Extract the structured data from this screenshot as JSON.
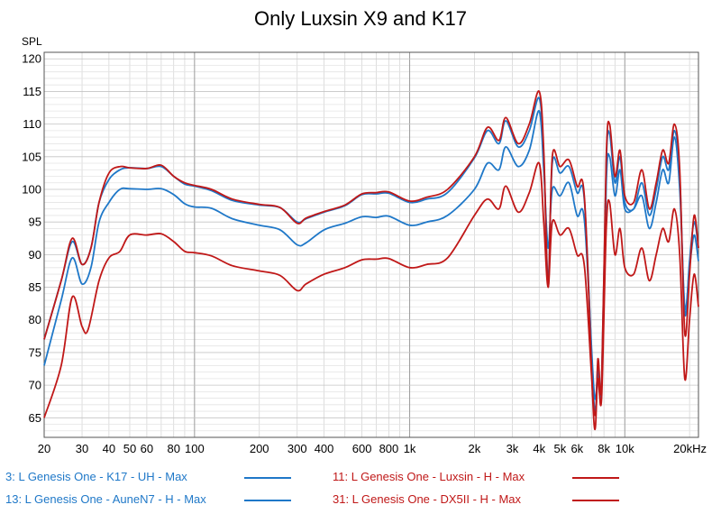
{
  "chart_data": {
    "type": "line",
    "title": "Only Luxsin X9 and K17",
    "ylabel": "SPL",
    "xlabel": "",
    "x_scale": "log",
    "xlim": [
      20,
      22000
    ],
    "ylim": [
      62,
      121
    ],
    "grid": true,
    "y_ticks": [
      65,
      70,
      75,
      80,
      85,
      90,
      95,
      100,
      105,
      110,
      115,
      120
    ],
    "x_ticks": [
      {
        "value": 20,
        "label": "20"
      },
      {
        "value": 30,
        "label": "30"
      },
      {
        "value": 40,
        "label": "40"
      },
      {
        "value": 50,
        "label": "50"
      },
      {
        "value": 60,
        "label": "60"
      },
      {
        "value": 80,
        "label": "80"
      },
      {
        "value": 100,
        "label": "100"
      },
      {
        "value": 200,
        "label": "200"
      },
      {
        "value": 300,
        "label": "300"
      },
      {
        "value": 400,
        "label": "400"
      },
      {
        "value": 600,
        "label": "600"
      },
      {
        "value": 800,
        "label": "800"
      },
      {
        "value": 1000,
        "label": "1k"
      },
      {
        "value": 2000,
        "label": "2k"
      },
      {
        "value": 3000,
        "label": "3k"
      },
      {
        "value": 4000,
        "label": "4k"
      },
      {
        "value": 5000,
        "label": "5k"
      },
      {
        "value": 6000,
        "label": "6k"
      },
      {
        "value": 8000,
        "label": "8k"
      },
      {
        "value": 10000,
        "label": "10k"
      },
      {
        "value": 20000,
        "label": "20kHz"
      }
    ],
    "series": [
      {
        "name": "3: L Genesis One - K17  - UH - Max",
        "color": "#1f78c8",
        "points": [
          [
            20,
            73
          ],
          [
            24,
            83
          ],
          [
            27,
            89.5
          ],
          [
            30,
            85.5
          ],
          [
            33,
            88
          ],
          [
            36,
            95
          ],
          [
            40,
            98
          ],
          [
            45,
            100
          ],
          [
            50,
            100.1
          ],
          [
            60,
            100
          ],
          [
            70,
            100.1
          ],
          [
            80,
            99.2
          ],
          [
            90,
            97.8
          ],
          [
            100,
            97.3
          ],
          [
            120,
            97.1
          ],
          [
            150,
            95.5
          ],
          [
            200,
            94.5
          ],
          [
            250,
            93.8
          ],
          [
            300,
            91.5
          ],
          [
            330,
            91.8
          ],
          [
            400,
            93.8
          ],
          [
            500,
            94.8
          ],
          [
            600,
            95.8
          ],
          [
            700,
            95.7
          ],
          [
            800,
            95.9
          ],
          [
            1000,
            94.5
          ],
          [
            1200,
            95
          ],
          [
            1500,
            96
          ],
          [
            2000,
            100
          ],
          [
            2300,
            104
          ],
          [
            2600,
            103
          ],
          [
            2800,
            106.5
          ],
          [
            3200,
            103.5
          ],
          [
            3600,
            106
          ],
          [
            4000,
            112
          ],
          [
            4200,
            103
          ],
          [
            4400,
            91
          ],
          [
            4600,
            100
          ],
          [
            5000,
            99
          ],
          [
            5500,
            101
          ],
          [
            6000,
            96
          ],
          [
            6500,
            95
          ],
          [
            7200,
            69
          ],
          [
            7500,
            72
          ],
          [
            7800,
            69
          ],
          [
            8200,
            101
          ],
          [
            8500,
            105
          ],
          [
            9000,
            99
          ],
          [
            9500,
            103
          ],
          [
            10000,
            97
          ],
          [
            11000,
            97
          ],
          [
            12000,
            99
          ],
          [
            13000,
            94
          ],
          [
            14000,
            98
          ],
          [
            15000,
            103
          ],
          [
            16000,
            101
          ],
          [
            17000,
            108
          ],
          [
            18000,
            100
          ],
          [
            19000,
            82
          ],
          [
            20000,
            88
          ],
          [
            21000,
            93
          ],
          [
            22000,
            89
          ]
        ]
      },
      {
        "name": "13: L Genesis One - AuneN7  - H - Max",
        "color": "#1f78c8",
        "points": [
          [
            20,
            77
          ],
          [
            24,
            86
          ],
          [
            27,
            92
          ],
          [
            30,
            88.5
          ],
          [
            33,
            91
          ],
          [
            36,
            98
          ],
          [
            40,
            101.5
          ],
          [
            45,
            103
          ],
          [
            50,
            103.3
          ],
          [
            60,
            103.2
          ],
          [
            70,
            103.5
          ],
          [
            80,
            102
          ],
          [
            90,
            100.8
          ],
          [
            100,
            100.5
          ],
          [
            120,
            99.8
          ],
          [
            150,
            98.3
          ],
          [
            200,
            97.6
          ],
          [
            250,
            97.2
          ],
          [
            300,
            95
          ],
          [
            330,
            95.5
          ],
          [
            400,
            96.5
          ],
          [
            500,
            97.5
          ],
          [
            600,
            99.2
          ],
          [
            700,
            99.3
          ],
          [
            800,
            99.4
          ],
          [
            1000,
            98
          ],
          [
            1200,
            98.5
          ],
          [
            1500,
            99.5
          ],
          [
            2000,
            104.8
          ],
          [
            2300,
            109
          ],
          [
            2600,
            107
          ],
          [
            2800,
            110.5
          ],
          [
            3200,
            106.5
          ],
          [
            3600,
            109
          ],
          [
            4000,
            114
          ],
          [
            4200,
            105
          ],
          [
            4400,
            86
          ],
          [
            4600,
            104
          ],
          [
            5000,
            102.5
          ],
          [
            5500,
            103.5
          ],
          [
            6000,
            99.5
          ],
          [
            6500,
            98
          ],
          [
            7200,
            67
          ],
          [
            7500,
            73
          ],
          [
            7800,
            70
          ],
          [
            8200,
            104
          ],
          [
            8500,
            108.5
          ],
          [
            9000,
            101
          ],
          [
            9500,
            105
          ],
          [
            10000,
            98
          ],
          [
            11000,
            97
          ],
          [
            12000,
            101
          ],
          [
            13000,
            96
          ],
          [
            14000,
            100
          ],
          [
            15000,
            105
          ],
          [
            16000,
            103
          ],
          [
            17000,
            109
          ],
          [
            18000,
            102
          ],
          [
            19000,
            81
          ],
          [
            20000,
            89
          ],
          [
            21000,
            95
          ],
          [
            22000,
            91
          ]
        ]
      },
      {
        "name": "11: L Genesis One - Luxsin  - H - Max",
        "color": "#c01818",
        "points": [
          [
            20,
            77
          ],
          [
            24,
            86
          ],
          [
            27,
            92.5
          ],
          [
            30,
            88.5
          ],
          [
            33,
            91
          ],
          [
            36,
            98
          ],
          [
            40,
            102.5
          ],
          [
            45,
            103.5
          ],
          [
            50,
            103.3
          ],
          [
            60,
            103.2
          ],
          [
            70,
            103.7
          ],
          [
            80,
            102
          ],
          [
            90,
            101
          ],
          [
            100,
            100.6
          ],
          [
            120,
            100
          ],
          [
            150,
            98.5
          ],
          [
            200,
            97.7
          ],
          [
            250,
            97.2
          ],
          [
            300,
            94.8
          ],
          [
            330,
            95.6
          ],
          [
            400,
            96.6
          ],
          [
            500,
            97.6
          ],
          [
            600,
            99.3
          ],
          [
            700,
            99.5
          ],
          [
            800,
            99.6
          ],
          [
            1000,
            98.2
          ],
          [
            1200,
            98.8
          ],
          [
            1500,
            100
          ],
          [
            2000,
            105
          ],
          [
            2300,
            109.5
          ],
          [
            2600,
            107.5
          ],
          [
            2800,
            111
          ],
          [
            3200,
            107
          ],
          [
            3600,
            110
          ],
          [
            4000,
            115
          ],
          [
            4200,
            106
          ],
          [
            4400,
            85
          ],
          [
            4600,
            105
          ],
          [
            5000,
            103.5
          ],
          [
            5500,
            104.5
          ],
          [
            6000,
            100.5
          ],
          [
            6500,
            98.5
          ],
          [
            7200,
            64
          ],
          [
            7500,
            74
          ],
          [
            7800,
            70
          ],
          [
            8200,
            105
          ],
          [
            8500,
            110
          ],
          [
            9000,
            102
          ],
          [
            9500,
            106
          ],
          [
            10000,
            99
          ],
          [
            11000,
            98
          ],
          [
            12000,
            103
          ],
          [
            13000,
            97
          ],
          [
            14000,
            101
          ],
          [
            15000,
            106
          ],
          [
            16000,
            104
          ],
          [
            17000,
            110
          ],
          [
            18000,
            103
          ],
          [
            19000,
            78
          ],
          [
            20000,
            87
          ],
          [
            21000,
            96
          ],
          [
            22000,
            91
          ]
        ]
      },
      {
        "name": "31: L Genesis One - DX5II  - H - Max",
        "color": "#c01818",
        "points": [
          [
            20,
            65
          ],
          [
            24,
            73
          ],
          [
            27,
            83.5
          ],
          [
            30,
            79
          ],
          [
            32,
            78.5
          ],
          [
            36,
            86
          ],
          [
            40,
            89.5
          ],
          [
            45,
            90.5
          ],
          [
            50,
            93
          ],
          [
            60,
            93
          ],
          [
            70,
            93.2
          ],
          [
            80,
            92
          ],
          [
            90,
            90.5
          ],
          [
            100,
            90.3
          ],
          [
            120,
            89.8
          ],
          [
            150,
            88.3
          ],
          [
            200,
            87.5
          ],
          [
            250,
            86.8
          ],
          [
            300,
            84.5
          ],
          [
            330,
            85.5
          ],
          [
            400,
            87
          ],
          [
            500,
            88
          ],
          [
            600,
            89.2
          ],
          [
            700,
            89.3
          ],
          [
            800,
            89.4
          ],
          [
            1000,
            88
          ],
          [
            1200,
            88.5
          ],
          [
            1500,
            89.5
          ],
          [
            2000,
            96
          ],
          [
            2300,
            98.5
          ],
          [
            2600,
            97
          ],
          [
            2800,
            100.5
          ],
          [
            3200,
            96.5
          ],
          [
            3600,
            99.5
          ],
          [
            4000,
            104
          ],
          [
            4200,
            95
          ],
          [
            4400,
            85
          ],
          [
            4600,
            95
          ],
          [
            5000,
            93
          ],
          [
            5500,
            94
          ],
          [
            6000,
            90
          ],
          [
            6500,
            88
          ],
          [
            7200,
            66
          ],
          [
            7500,
            71
          ],
          [
            7800,
            68
          ],
          [
            8200,
            94
          ],
          [
            8500,
            98
          ],
          [
            9000,
            90
          ],
          [
            9500,
            94
          ],
          [
            10000,
            88
          ],
          [
            11000,
            87
          ],
          [
            12000,
            91
          ],
          [
            13000,
            86
          ],
          [
            14000,
            90
          ],
          [
            15000,
            94
          ],
          [
            16000,
            92
          ],
          [
            17000,
            97
          ],
          [
            18000,
            90
          ],
          [
            19000,
            71
          ],
          [
            20000,
            80
          ],
          [
            21000,
            87
          ],
          [
            22000,
            82
          ]
        ]
      }
    ]
  }
}
